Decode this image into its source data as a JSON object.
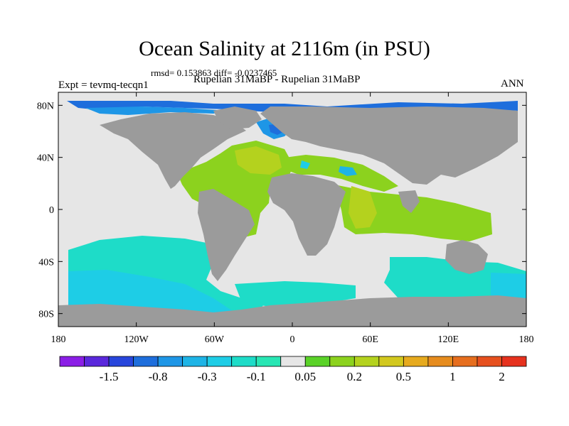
{
  "title": "Ocean Salinity at 2116m (in PSU)",
  "stats": "rmsd= 0.153863 diff= -0.0237465",
  "expt": "Expt = tevmq-tecqn1",
  "subtitle": "Rupelian  31MaBP - Rupelian  31MaBP",
  "season": "ANN",
  "map": {
    "lat_ticks": [
      "80N",
      "40N",
      "0",
      "40S",
      "80S"
    ],
    "lat_values": [
      80,
      40,
      0,
      -40,
      -80
    ],
    "lon_ticks": [
      "180",
      "120W",
      "60W",
      "0",
      "60E",
      "120E",
      "180"
    ],
    "lon_values": [
      -180,
      -120,
      -60,
      0,
      60,
      120,
      180
    ],
    "lon_range": [
      -180,
      180
    ],
    "lat_range": [
      -90,
      90
    ],
    "land_color": "#9b9b9b",
    "ocean_background": "#e6e6e6"
  },
  "colorbar": {
    "colors": [
      "#8b1ee6",
      "#5a28dc",
      "#2846dc",
      "#1e6edc",
      "#1e96e6",
      "#1eb4e6",
      "#1ecde6",
      "#1edcc8",
      "#28e6b4",
      "#e6e6e6",
      "#5ad228",
      "#8cd21e",
      "#b4d21e",
      "#d2c81e",
      "#e6aa1e",
      "#e68c1e",
      "#e66e1e",
      "#e6501e",
      "#e6321e"
    ],
    "labels": [
      {
        "text": "-1.5",
        "boundary": 2
      },
      {
        "text": "-0.8",
        "boundary": 4
      },
      {
        "text": "-0.3",
        "boundary": 6
      },
      {
        "text": "-0.1",
        "boundary": 8
      },
      {
        "text": "0.05",
        "boundary": 10
      },
      {
        "text": "0.2",
        "boundary": 12
      },
      {
        "text": "0.5",
        "boundary": 14
      },
      {
        "text": "1",
        "boundary": 16
      },
      {
        "text": "2",
        "boundary": 18
      }
    ]
  }
}
